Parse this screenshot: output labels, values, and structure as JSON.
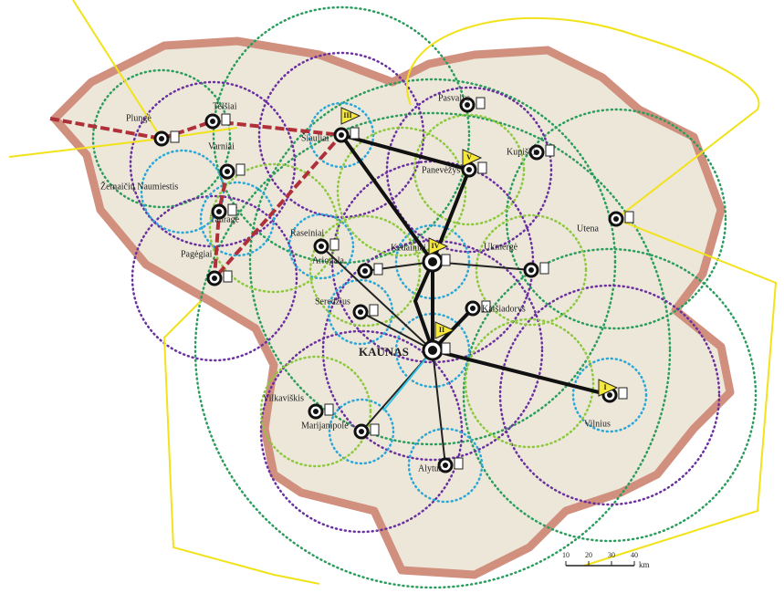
{
  "map": {
    "cities": [
      {
        "label": "Plungė"
      },
      {
        "label": "Telšiai"
      },
      {
        "label": "Šiauliai"
      },
      {
        "label": "Pasvalys"
      },
      {
        "label": "Kupiškis"
      },
      {
        "label": "Panevėžys"
      },
      {
        "label": "Utena"
      },
      {
        "label": "Žemaičių Naumiestis"
      },
      {
        "label": "Varniai"
      },
      {
        "label": "Tauragė"
      },
      {
        "label": "Pagėgiai"
      },
      {
        "label": "Raseiniai"
      },
      {
        "label": "Ariogala"
      },
      {
        "label": "Kėdainiai"
      },
      {
        "label": "Ukmergė"
      },
      {
        "label": "Seredžius"
      },
      {
        "label": "Kaišiadorys"
      },
      {
        "label": "KAUNAS"
      },
      {
        "label": "Vilkaviškis"
      },
      {
        "label": "Marijampolė"
      },
      {
        "label": "Alytus"
      },
      {
        "label": "Vilnius"
      }
    ],
    "markers": [
      "III",
      "V",
      "IV",
      "II",
      "I"
    ],
    "scale": {
      "ticks": [
        10,
        20,
        30,
        40
      ],
      "unit": "km"
    }
  }
}
